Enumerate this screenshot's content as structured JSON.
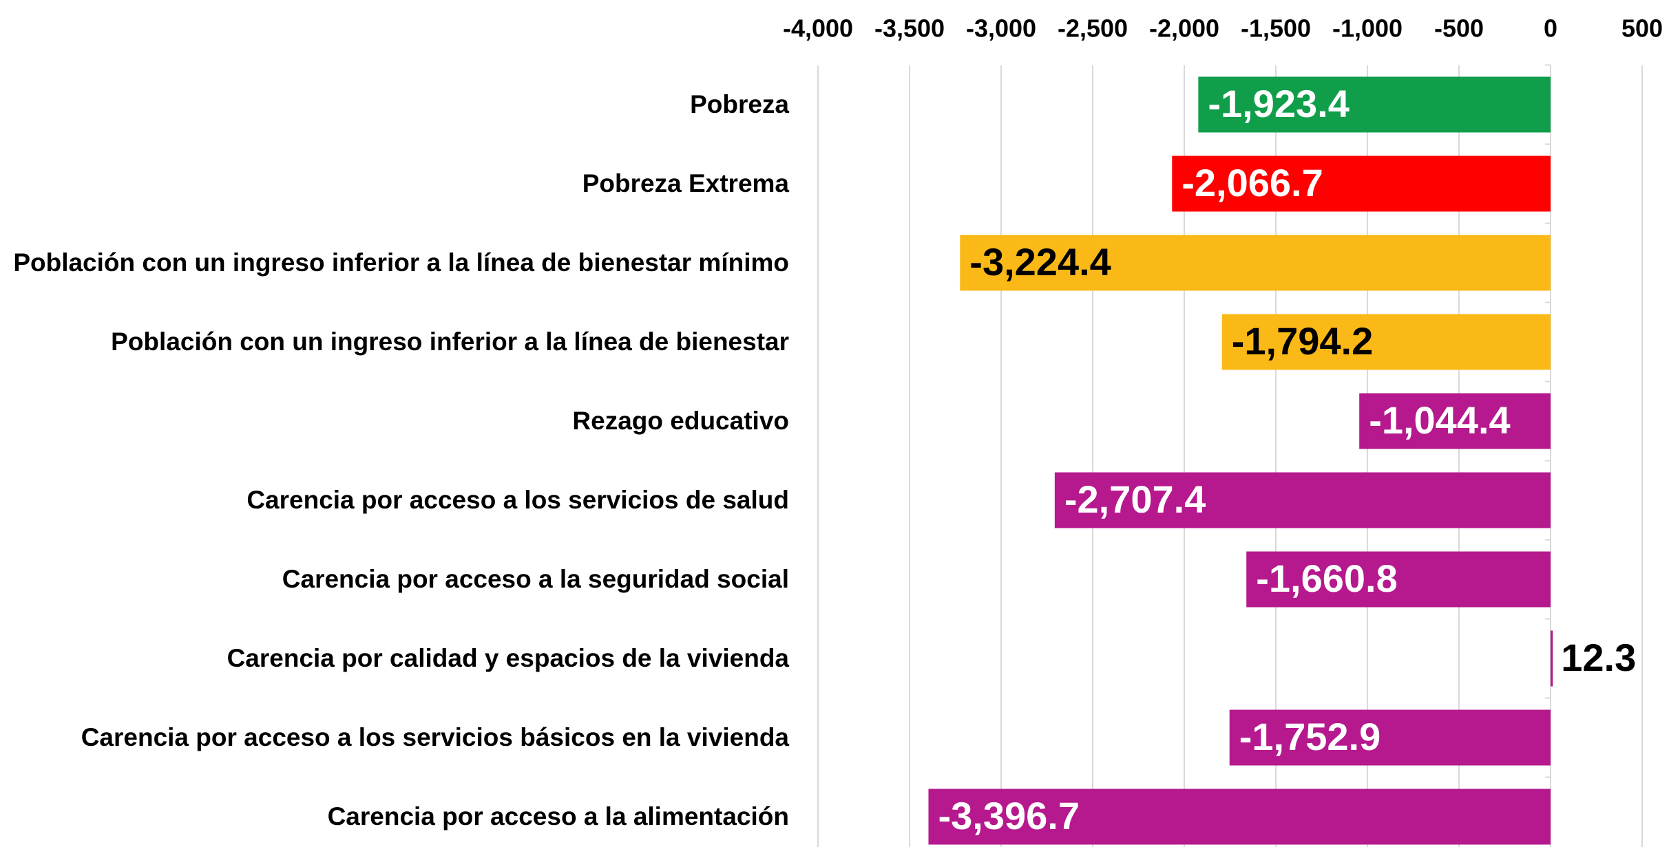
{
  "chart_data": {
    "type": "hbar",
    "categories": [
      "Pobreza",
      "Pobreza Extrema",
      "Población con un ingreso inferior a la línea de bienestar mínimo",
      "Población con un ingreso inferior a la línea de bienestar",
      "Rezago educativo",
      "Carencia por acceso a los servicios de salud",
      "Carencia por acceso a la seguridad social",
      "Carencia por calidad y espacios de la vivienda",
      "Carencia por acceso a los servicios básicos en la vivienda",
      "Carencia por acceso a la alimentación"
    ],
    "values": [
      -1923.4,
      -2066.7,
      -3224.4,
      -1794.2,
      -1044.4,
      -2707.4,
      -1660.8,
      12.3,
      -1752.9,
      -3396.7
    ],
    "value_labels": [
      "-1,923.4",
      "-2,066.7",
      "-3,224.4",
      "-1,794.2",
      "-1,044.4",
      "-2,707.4",
      "-1,660.8",
      "12.3",
      "-1,752.9",
      "-3,396.7"
    ],
    "colors": [
      "#109e4b",
      "#ff0000",
      "#fbb917",
      "#fbb917",
      "#b5198d",
      "#b5198d",
      "#b5198d",
      "#b5198d",
      "#b5198d",
      "#b5198d"
    ],
    "label_colors": [
      "#ffffff",
      "#ffffff",
      "#000000",
      "#000000",
      "#ffffff",
      "#ffffff",
      "#ffffff",
      "#000000",
      "#ffffff",
      "#ffffff"
    ],
    "xlim": [
      -4000,
      500
    ],
    "xticks": [
      {
        "value": -4000,
        "label": "-4,000"
      },
      {
        "value": -3500,
        "label": "-3,500"
      },
      {
        "value": -3000,
        "label": "-3,000"
      },
      {
        "value": -2500,
        "label": "-2,500"
      },
      {
        "value": -2000,
        "label": "-2,000"
      },
      {
        "value": -1500,
        "label": "-1,500"
      },
      {
        "value": -1000,
        "label": "-1,000"
      },
      -500,
      0,
      500
    ],
    "grid": true,
    "axis_position": "top"
  }
}
